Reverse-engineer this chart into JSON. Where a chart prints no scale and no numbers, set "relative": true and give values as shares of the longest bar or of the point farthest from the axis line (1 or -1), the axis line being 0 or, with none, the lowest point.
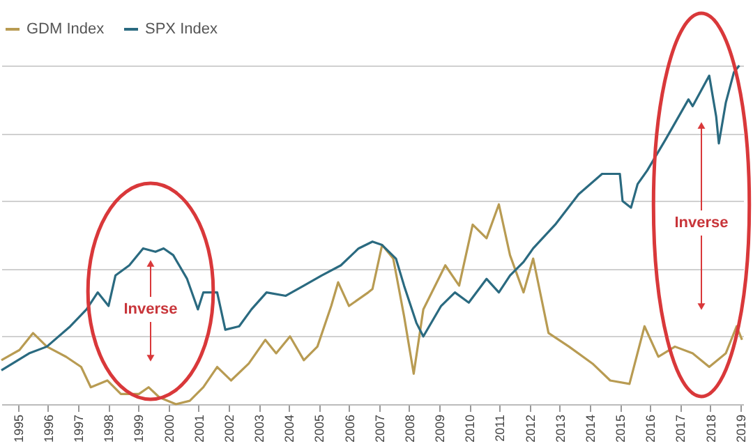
{
  "chart_data": {
    "type": "line",
    "relative": true,
    "grid": "y",
    "legend": "top",
    "line_style": "solid",
    "marker": "none",
    "xlim": [
      1994.45,
      2019.1
    ],
    "xticks": [
      1995,
      1996,
      1997,
      1998,
      1999,
      2000,
      2001,
      2002,
      2003,
      2004,
      2005,
      2006,
      2007,
      2008,
      2009,
      2010,
      2011,
      2012,
      2013,
      2014,
      2015,
      2016,
      2017,
      2018,
      2019
    ],
    "series": [
      {
        "name": "GDM Index",
        "color": "#b89b52",
        "x": [
          1994.45,
          1995.05,
          1995.5,
          1995.96,
          1996.6,
          1997.1,
          1997.42,
          1997.97,
          1998.42,
          1999.02,
          1999.34,
          1999.7,
          2000.25,
          2000.71,
          2001.16,
          2001.62,
          2002.08,
          2002.67,
          2003.22,
          2003.58,
          2004.04,
          2004.5,
          2004.95,
          2005.41,
          2005.64,
          2006.0,
          2006.64,
          2006.78,
          2007.1,
          2007.47,
          2007.83,
          2008.15,
          2008.47,
          2009.2,
          2009.66,
          2010.11,
          2010.57,
          2010.98,
          2011.35,
          2011.8,
          2012.12,
          2012.63,
          2013.31,
          2014.09,
          2014.68,
          2015.32,
          2015.82,
          2016.28,
          2016.83,
          2017.42,
          2017.97,
          2018.52,
          2018.88,
          2019.06
        ],
        "values": [
          0.13,
          0.16,
          0.21,
          0.17,
          0.14,
          0.11,
          0.05,
          0.07,
          0.03,
          0.03,
          0.05,
          0.02,
          0,
          0.01,
          0.05,
          0.11,
          0.07,
          0.12,
          0.19,
          0.15,
          0.2,
          0.13,
          0.17,
          0.29,
          0.36,
          0.29,
          0.33,
          0.34,
          0.47,
          0.43,
          0.26,
          0.09,
          0.28,
          0.41,
          0.35,
          0.53,
          0.49,
          0.59,
          0.44,
          0.33,
          0.43,
          0.21,
          0.17,
          0.12,
          0.07,
          0.06,
          0.23,
          0.14,
          0.17,
          0.15,
          0.11,
          0.15,
          0.23,
          0.19
        ]
      },
      {
        "name": "SPX Index",
        "color": "#2a6a80",
        "x": [
          1994.45,
          1995.37,
          1995.96,
          1996.74,
          1997.28,
          1997.65,
          1998.01,
          1998.24,
          1998.7,
          1999.16,
          1999.57,
          1999.84,
          2000.16,
          2000.62,
          2000.98,
          2001.16,
          2001.62,
          2001.89,
          2002.35,
          2002.76,
          2003.26,
          2003.9,
          2004.5,
          2005.09,
          2005.73,
          2006.32,
          2006.78,
          2007.1,
          2007.56,
          2007.83,
          2008.24,
          2008.47,
          2009.06,
          2009.52,
          2009.98,
          2010.57,
          2010.98,
          2011.35,
          2011.8,
          2012.12,
          2012.85,
          2013.63,
          2014.41,
          2015.0,
          2015.09,
          2015.37,
          2015.59,
          2015.91,
          2016.51,
          2017.28,
          2017.42,
          2017.97,
          2018.2,
          2018.29,
          2018.52,
          2018.79,
          2018.97
        ],
        "values": [
          0.1,
          0.15,
          0.17,
          0.23,
          0.28,
          0.33,
          0.29,
          0.38,
          0.41,
          0.46,
          0.45,
          0.46,
          0.44,
          0.37,
          0.28,
          0.33,
          0.33,
          0.22,
          0.23,
          0.28,
          0.33,
          0.32,
          0.35,
          0.38,
          0.41,
          0.46,
          0.48,
          0.47,
          0.43,
          0.35,
          0.24,
          0.2,
          0.29,
          0.33,
          0.3,
          0.37,
          0.33,
          0.38,
          0.42,
          0.46,
          0.53,
          0.62,
          0.68,
          0.68,
          0.6,
          0.58,
          0.65,
          0.69,
          0.78,
          0.9,
          0.88,
          0.97,
          0.85,
          0.77,
          0.89,
          0.98,
          1.0
        ]
      }
    ],
    "annotations": [
      "Inverse",
      "Inverse"
    ]
  }
}
